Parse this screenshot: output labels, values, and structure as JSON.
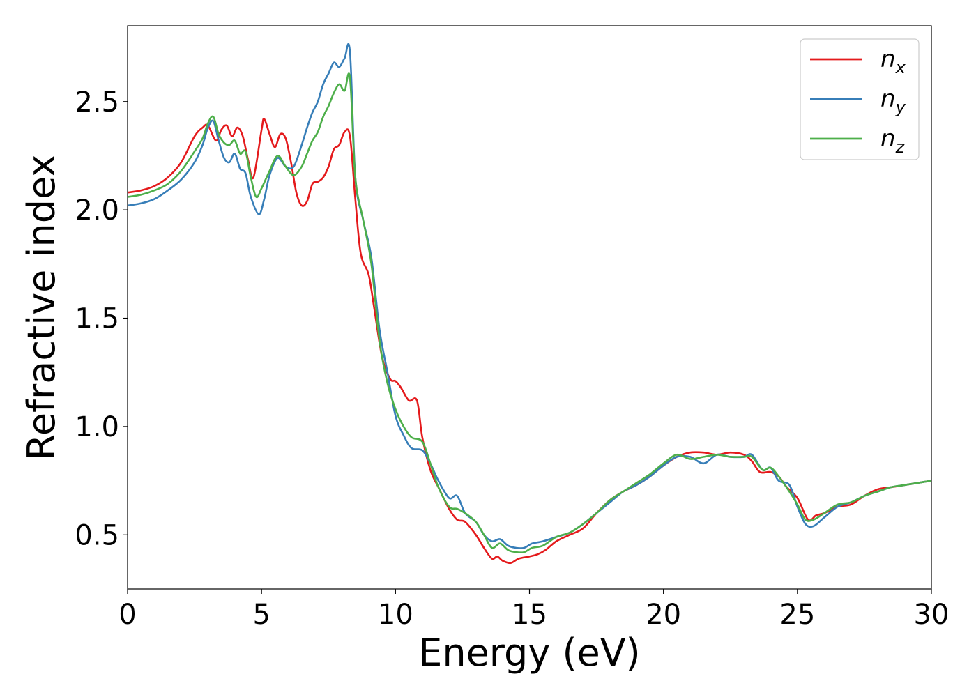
{
  "chart_data": {
    "type": "line",
    "xlabel": "Energy (eV)",
    "ylabel": "Refractive index",
    "xlim": [
      0,
      30
    ],
    "ylim": [
      0.25,
      2.85
    ],
    "xticks": [
      0,
      5,
      10,
      15,
      20,
      25,
      30
    ],
    "xtick_labels": [
      "0",
      "5",
      "10",
      "15",
      "20",
      "25",
      "30"
    ],
    "yticks": [
      0.5,
      1.0,
      1.5,
      2.0,
      2.5
    ],
    "ytick_labels": [
      "0.5",
      "1.0",
      "1.5",
      "2.0",
      "2.5"
    ],
    "grid": false,
    "legend_position": "top-right",
    "series": [
      {
        "name": "n",
        "subscript": "x",
        "color": "#e41a1c",
        "x": [
          0,
          0.5,
          1,
          1.5,
          2,
          2.5,
          2.8,
          3.0,
          3.3,
          3.5,
          3.7,
          3.9,
          4.1,
          4.3,
          4.5,
          4.7,
          5.0,
          5.1,
          5.3,
          5.5,
          5.7,
          5.9,
          6.1,
          6.3,
          6.5,
          6.7,
          6.9,
          7.1,
          7.3,
          7.5,
          7.7,
          7.9,
          8.1,
          8.3,
          8.5,
          8.7,
          9.0,
          9.2,
          9.5,
          9.8,
          10.0,
          10.2,
          10.5,
          10.8,
          11.0,
          11.3,
          11.6,
          12.0,
          12.3,
          12.6,
          13.0,
          13.3,
          13.6,
          13.8,
          14.0,
          14.3,
          14.6,
          15.0,
          15.3,
          15.6,
          16.0,
          16.5,
          17.0,
          17.5,
          18.0,
          18.5,
          19.0,
          19.5,
          20.0,
          20.5,
          21.0,
          21.5,
          22.0,
          22.5,
          23.0,
          23.3,
          23.6,
          24.0,
          24.3,
          24.6,
          25.0,
          25.4,
          25.7,
          26.0,
          26.5,
          27.0,
          27.5,
          28.0,
          28.5,
          29.0,
          29.5,
          30.0
        ],
        "values": [
          2.08,
          2.09,
          2.11,
          2.15,
          2.22,
          2.34,
          2.38,
          2.39,
          2.32,
          2.37,
          2.39,
          2.34,
          2.38,
          2.34,
          2.23,
          2.15,
          2.37,
          2.42,
          2.35,
          2.29,
          2.35,
          2.33,
          2.22,
          2.08,
          2.02,
          2.04,
          2.12,
          2.13,
          2.15,
          2.2,
          2.28,
          2.3,
          2.36,
          2.34,
          2.05,
          1.8,
          1.7,
          1.55,
          1.32,
          1.22,
          1.21,
          1.18,
          1.12,
          1.12,
          0.95,
          0.8,
          0.72,
          0.62,
          0.57,
          0.56,
          0.5,
          0.44,
          0.39,
          0.4,
          0.38,
          0.37,
          0.39,
          0.4,
          0.41,
          0.43,
          0.47,
          0.5,
          0.53,
          0.6,
          0.66,
          0.7,
          0.73,
          0.77,
          0.82,
          0.86,
          0.88,
          0.88,
          0.87,
          0.88,
          0.87,
          0.84,
          0.79,
          0.79,
          0.77,
          0.72,
          0.67,
          0.57,
          0.59,
          0.6,
          0.63,
          0.64,
          0.68,
          0.71,
          0.72,
          0.73,
          0.74,
          0.75
        ]
      },
      {
        "name": "n",
        "subscript": "y",
        "color": "#377eb8",
        "x": [
          0,
          0.5,
          1,
          1.5,
          2,
          2.5,
          2.8,
          3.0,
          3.2,
          3.4,
          3.6,
          3.8,
          4.0,
          4.2,
          4.4,
          4.6,
          4.9,
          5.1,
          5.3,
          5.6,
          5.9,
          6.2,
          6.5,
          6.7,
          6.9,
          7.1,
          7.3,
          7.5,
          7.7,
          7.9,
          8.1,
          8.3,
          8.5,
          8.8,
          9.1,
          9.4,
          9.7,
          10.0,
          10.3,
          10.6,
          11.0,
          11.3,
          11.6,
          12.0,
          12.3,
          12.6,
          13.0,
          13.3,
          13.6,
          13.9,
          14.2,
          14.5,
          14.8,
          15.1,
          15.5,
          16.0,
          16.5,
          17.0,
          17.5,
          18.0,
          18.5,
          19.0,
          19.5,
          20.0,
          20.5,
          21.0,
          21.5,
          22.0,
          22.5,
          23.0,
          23.3,
          23.7,
          24.0,
          24.3,
          24.7,
          25.0,
          25.3,
          25.6,
          26.0,
          26.5,
          27.0,
          27.5,
          28.0,
          28.5,
          29.0,
          29.5,
          30.0
        ],
        "values": [
          2.02,
          2.03,
          2.05,
          2.09,
          2.14,
          2.22,
          2.3,
          2.38,
          2.41,
          2.32,
          2.24,
          2.22,
          2.26,
          2.19,
          2.17,
          2.06,
          1.98,
          2.05,
          2.16,
          2.24,
          2.2,
          2.2,
          2.3,
          2.38,
          2.45,
          2.5,
          2.58,
          2.63,
          2.68,
          2.66,
          2.7,
          2.73,
          2.15,
          1.95,
          1.78,
          1.45,
          1.25,
          1.05,
          0.96,
          0.9,
          0.89,
          0.83,
          0.75,
          0.67,
          0.68,
          0.6,
          0.56,
          0.5,
          0.47,
          0.48,
          0.45,
          0.44,
          0.44,
          0.46,
          0.47,
          0.49,
          0.51,
          0.55,
          0.6,
          0.65,
          0.7,
          0.73,
          0.77,
          0.82,
          0.86,
          0.86,
          0.83,
          0.87,
          0.86,
          0.86,
          0.87,
          0.8,
          0.81,
          0.75,
          0.73,
          0.63,
          0.55,
          0.54,
          0.58,
          0.63,
          0.65,
          0.68,
          0.7,
          0.72,
          0.73,
          0.74,
          0.75
        ]
      },
      {
        "name": "n",
        "subscript": "z",
        "color": "#4daf4a",
        "x": [
          0,
          0.5,
          1,
          1.5,
          2,
          2.5,
          2.8,
          3.0,
          3.2,
          3.4,
          3.6,
          3.8,
          4.0,
          4.2,
          4.4,
          4.6,
          4.8,
          5.0,
          5.3,
          5.6,
          5.9,
          6.2,
          6.5,
          6.7,
          6.9,
          7.1,
          7.3,
          7.5,
          7.7,
          7.9,
          8.1,
          8.3,
          8.5,
          8.8,
          9.1,
          9.4,
          9.7,
          10.0,
          10.3,
          10.6,
          11.0,
          11.3,
          11.6,
          12.0,
          12.3,
          12.6,
          13.0,
          13.3,
          13.6,
          13.9,
          14.2,
          14.5,
          14.8,
          15.1,
          15.5,
          16.0,
          16.5,
          17.0,
          17.5,
          18.0,
          18.5,
          19.0,
          19.5,
          20.0,
          20.5,
          21.0,
          21.5,
          22.0,
          22.5,
          23.0,
          23.3,
          23.7,
          24.0,
          24.3,
          24.7,
          25.0,
          25.3,
          25.6,
          26.0,
          26.5,
          27.0,
          27.5,
          28.0,
          28.5,
          29.0,
          29.5,
          30.0
        ],
        "values": [
          2.06,
          2.07,
          2.09,
          2.12,
          2.18,
          2.27,
          2.33,
          2.4,
          2.43,
          2.35,
          2.31,
          2.3,
          2.32,
          2.26,
          2.27,
          2.15,
          2.06,
          2.1,
          2.18,
          2.25,
          2.2,
          2.16,
          2.2,
          2.26,
          2.32,
          2.36,
          2.43,
          2.48,
          2.54,
          2.58,
          2.55,
          2.61,
          2.15,
          1.95,
          1.75,
          1.4,
          1.2,
          1.08,
          1.0,
          0.95,
          0.93,
          0.83,
          0.72,
          0.63,
          0.62,
          0.6,
          0.56,
          0.5,
          0.44,
          0.46,
          0.43,
          0.42,
          0.42,
          0.44,
          0.45,
          0.49,
          0.51,
          0.55,
          0.6,
          0.66,
          0.7,
          0.74,
          0.78,
          0.83,
          0.87,
          0.85,
          0.86,
          0.87,
          0.86,
          0.86,
          0.86,
          0.8,
          0.81,
          0.77,
          0.7,
          0.64,
          0.57,
          0.57,
          0.6,
          0.64,
          0.65,
          0.68,
          0.7,
          0.72,
          0.73,
          0.74,
          0.75
        ]
      }
    ]
  }
}
